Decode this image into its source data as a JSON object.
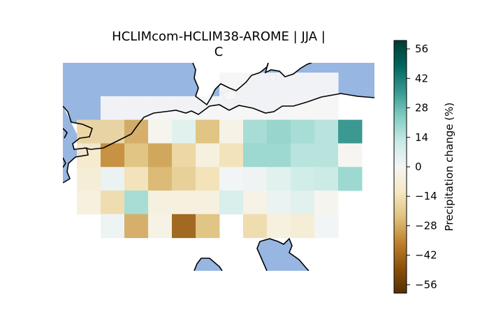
{
  "title_line1": "HCLIMcom-HCLIM38-AROME | JJA |",
  "title_line2": "C",
  "colorbar": {
    "label": "Precipitation change (%)",
    "vmin": -60,
    "vmax": 60,
    "ticks": [
      56,
      42,
      28,
      14,
      0,
      -14,
      -28,
      -42,
      -56
    ],
    "tick_labels": [
      "56",
      "42",
      "28",
      "14",
      "0",
      "−14",
      "−28",
      "−42",
      "−56"
    ],
    "colormap": "BrBG"
  },
  "colors": {
    "sea": "#97b6e2",
    "coast": "#000000"
  },
  "chart_data": {
    "type": "heatmap",
    "columns": 12,
    "rows": 7,
    "values_percent": [
      [
        null,
        null,
        null,
        null,
        null,
        null,
        0,
        0,
        0,
        0,
        0,
        null
      ],
      [
        null,
        0,
        0,
        0,
        0,
        0,
        0,
        0,
        0,
        0,
        0,
        null
      ],
      [
        -18,
        -18,
        -28,
        -2,
        6,
        -24,
        -4,
        18,
        21,
        18,
        15,
        37
      ],
      [
        -10,
        -34,
        -24,
        -30,
        -18,
        -6,
        -14,
        20,
        20,
        15,
        15,
        -1
      ],
      [
        -8,
        3,
        -14,
        -26,
        -20,
        -14,
        1,
        2,
        6,
        10,
        12,
        20
      ],
      [
        -6,
        -16,
        18,
        -6,
        -6,
        -6,
        8,
        -4,
        3,
        6,
        -2,
        null
      ],
      [
        null,
        2,
        -28,
        -4,
        -44,
        -24,
        null,
        -16,
        -6,
        -8,
        1,
        null
      ]
    ]
  }
}
